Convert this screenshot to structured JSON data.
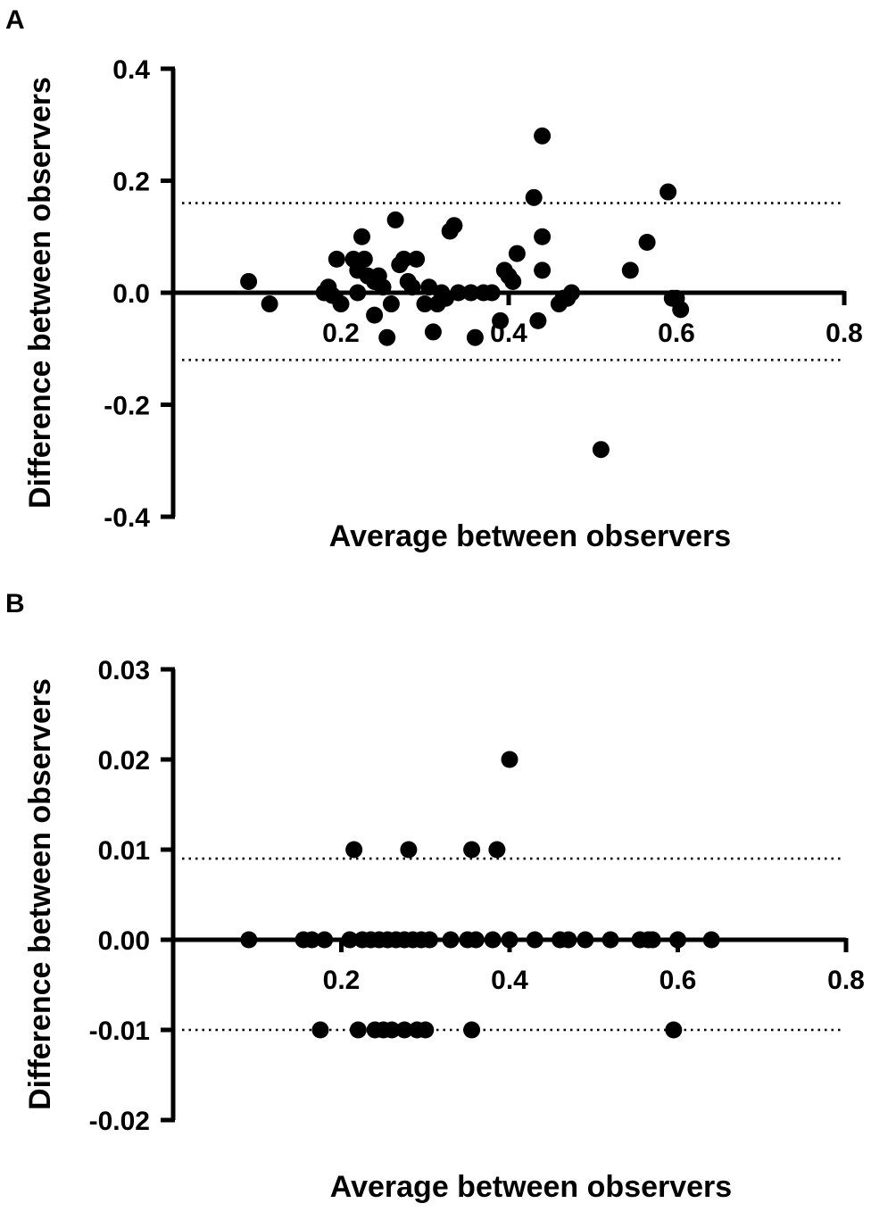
{
  "chart_data": [
    {
      "panel": "A",
      "type": "scatter",
      "xlabel": "Average between observers",
      "ylabel": "Difference between observers",
      "xlim": [
        0,
        0.8
      ],
      "ylim": [
        -0.4,
        0.4
      ],
      "x_ticks": [
        "0.2",
        "0.4",
        "0.6",
        "0.8"
      ],
      "y_ticks": [
        "0.4",
        "0.2",
        "0.0",
        "-0.2",
        "-0.4"
      ],
      "reference_lines": [
        0.16,
        -0.12
      ],
      "series": [
        {
          "points": [
            [
              0.09,
              0.02
            ],
            [
              0.115,
              -0.02
            ],
            [
              0.18,
              0.0
            ],
            [
              0.185,
              0.01
            ],
            [
              0.19,
              -0.005
            ],
            [
              0.195,
              0.06
            ],
            [
              0.2,
              -0.02
            ],
            [
              0.215,
              0.06
            ],
            [
              0.22,
              0.04
            ],
            [
              0.22,
              0.0
            ],
            [
              0.225,
              0.1
            ],
            [
              0.228,
              0.06
            ],
            [
              0.232,
              0.03
            ],
            [
              0.24,
              0.02
            ],
            [
              0.24,
              -0.04
            ],
            [
              0.245,
              0.03
            ],
            [
              0.25,
              0.01
            ],
            [
              0.255,
              -0.08
            ],
            [
              0.26,
              -0.02
            ],
            [
              0.265,
              0.13
            ],
            [
              0.27,
              0.05
            ],
            [
              0.275,
              0.06
            ],
            [
              0.28,
              0.02
            ],
            [
              0.285,
              0.01
            ],
            [
              0.29,
              0.06
            ],
            [
              0.3,
              -0.02
            ],
            [
              0.305,
              0.01
            ],
            [
              0.31,
              -0.07
            ],
            [
              0.315,
              -0.02
            ],
            [
              0.32,
              0.0
            ],
            [
              0.325,
              -0.01
            ],
            [
              0.33,
              0.11
            ],
            [
              0.335,
              0.12
            ],
            [
              0.34,
              0.0
            ],
            [
              0.355,
              0.0
            ],
            [
              0.36,
              -0.08
            ],
            [
              0.37,
              0.0
            ],
            [
              0.38,
              0.0
            ],
            [
              0.39,
              -0.05
            ],
            [
              0.395,
              0.04
            ],
            [
              0.4,
              0.03
            ],
            [
              0.405,
              0.02
            ],
            [
              0.41,
              0.07
            ],
            [
              0.43,
              0.17
            ],
            [
              0.435,
              -0.05
            ],
            [
              0.44,
              0.28
            ],
            [
              0.44,
              0.1
            ],
            [
              0.44,
              0.04
            ],
            [
              0.46,
              -0.02
            ],
            [
              0.465,
              -0.01
            ],
            [
              0.47,
              -0.01
            ],
            [
              0.475,
              0.0
            ],
            [
              0.51,
              -0.28
            ],
            [
              0.545,
              0.04
            ],
            [
              0.565,
              0.09
            ],
            [
              0.59,
              0.18
            ],
            [
              0.595,
              -0.01
            ],
            [
              0.6,
              -0.01
            ],
            [
              0.605,
              -0.03
            ]
          ]
        }
      ]
    },
    {
      "panel": "B",
      "type": "scatter",
      "xlabel": "Average between observers",
      "ylabel": "Difference between observers",
      "xlim": [
        0,
        0.8
      ],
      "ylim": [
        -0.02,
        0.03
      ],
      "x_ticks": [
        "0.2",
        "0.4",
        "0.6",
        "0.8"
      ],
      "y_ticks": [
        "0.03",
        "0.02",
        "0.01",
        "0.00",
        "-0.01",
        "-0.02"
      ],
      "reference_lines": [
        0.009,
        -0.01
      ],
      "series": [
        {
          "points": [
            [
              0.09,
              0.0
            ],
            [
              0.155,
              0.0
            ],
            [
              0.165,
              0.0
            ],
            [
              0.175,
              -0.01
            ],
            [
              0.18,
              0.0
            ],
            [
              0.21,
              0.0
            ],
            [
              0.215,
              0.01
            ],
            [
              0.22,
              -0.01
            ],
            [
              0.225,
              0.0
            ],
            [
              0.235,
              0.0
            ],
            [
              0.24,
              -0.01
            ],
            [
              0.245,
              0.0
            ],
            [
              0.25,
              -0.01
            ],
            [
              0.255,
              0.0
            ],
            [
              0.26,
              -0.01
            ],
            [
              0.265,
              0.0
            ],
            [
              0.275,
              0.0
            ],
            [
              0.275,
              -0.01
            ],
            [
              0.28,
              0.01
            ],
            [
              0.285,
              0.0
            ],
            [
              0.29,
              -0.01
            ],
            [
              0.295,
              0.0
            ],
            [
              0.3,
              -0.01
            ],
            [
              0.305,
              0.0
            ],
            [
              0.33,
              0.0
            ],
            [
              0.35,
              0.0
            ],
            [
              0.355,
              0.01
            ],
            [
              0.355,
              -0.01
            ],
            [
              0.36,
              0.0
            ],
            [
              0.38,
              0.0
            ],
            [
              0.385,
              0.01
            ],
            [
              0.4,
              0.02
            ],
            [
              0.4,
              0.0
            ],
            [
              0.43,
              0.0
            ],
            [
              0.46,
              0.0
            ],
            [
              0.47,
              0.0
            ],
            [
              0.49,
              0.0
            ],
            [
              0.52,
              0.0
            ],
            [
              0.555,
              0.0
            ],
            [
              0.565,
              0.0
            ],
            [
              0.57,
              0.0
            ],
            [
              0.595,
              -0.01
            ],
            [
              0.6,
              0.0
            ],
            [
              0.64,
              0.0
            ]
          ]
        }
      ]
    }
  ]
}
